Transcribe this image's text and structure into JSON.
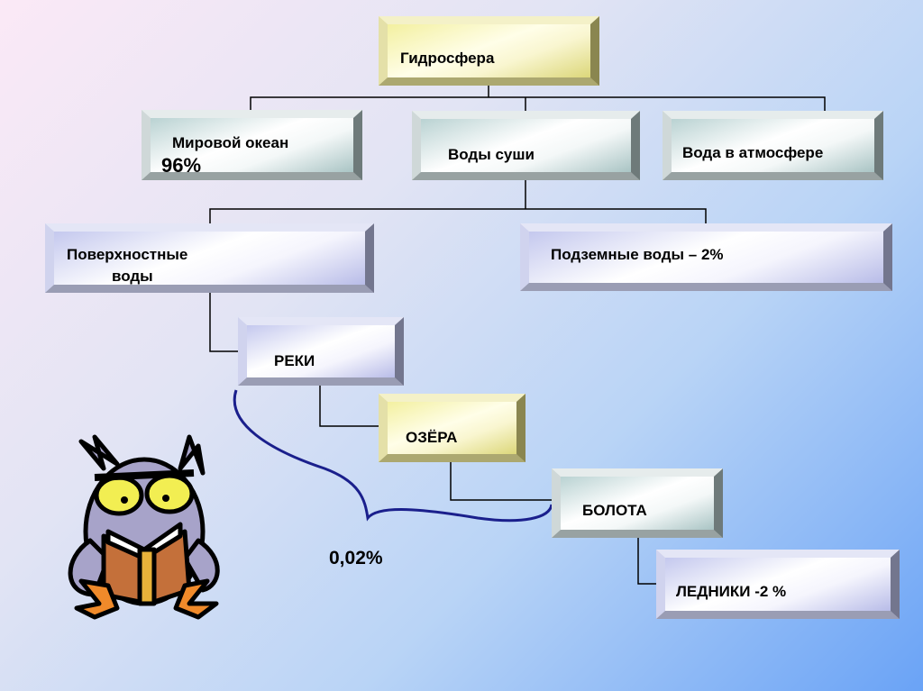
{
  "nodes": {
    "hydrosphere": "Гидросфера",
    "world_ocean": "Мировой океан",
    "world_ocean_pct": "96%",
    "land_waters": "Воды суши",
    "atmosphere_water": "Вода в атмосфере",
    "surface_waters_line1": "Поверхностные",
    "surface_waters_line2": "воды",
    "groundwater": "Подземные воды – 2%",
    "rivers": "РЕКИ",
    "lakes": "ОЗЁРА",
    "swamps": "БОЛОТА",
    "glaciers": "ЛЕДНИКИ -2 %"
  },
  "brace_label": "0,02%",
  "colors": {
    "line": "#000000",
    "brace": "#1a1f8c",
    "yellow_box": "#f3f0a0",
    "teal_box": "#b9d2d2",
    "lavender_box": "#c4c8ee"
  },
  "icons": {
    "mascot": "owl-reading-book"
  }
}
